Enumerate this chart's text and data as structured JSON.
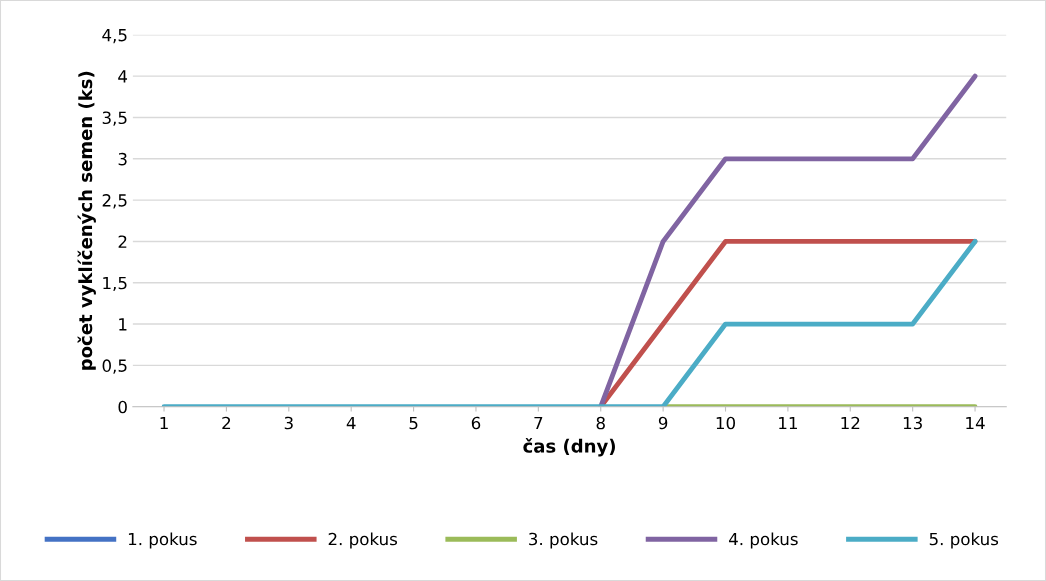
{
  "chart_data": {
    "type": "line",
    "xlabel": "čas (dny)",
    "ylabel": "počet vyklíčených semen (ks)",
    "categories": [
      "1",
      "2",
      "3",
      "4",
      "5",
      "6",
      "7",
      "8",
      "9",
      "10",
      "11",
      "12",
      "13",
      "14"
    ],
    "series": [
      {
        "name": "1. pokus",
        "color": "#4472c4",
        "values": [
          null,
          null,
          null,
          null,
          null,
          null,
          null,
          null,
          null,
          null,
          null,
          null,
          null,
          null
        ]
      },
      {
        "name": "2. pokus",
        "color": "#c0504d",
        "values": [
          null,
          null,
          null,
          null,
          null,
          null,
          null,
          0,
          1,
          2,
          2,
          2,
          2,
          2
        ]
      },
      {
        "name": "3. pokus",
        "color": "#9bbb59",
        "values": [
          null,
          null,
          null,
          null,
          null,
          null,
          null,
          null,
          0,
          0,
          0,
          0,
          0,
          0
        ]
      },
      {
        "name": "4. pokus",
        "color": "#8064a2",
        "values": [
          null,
          null,
          null,
          null,
          null,
          null,
          null,
          0,
          2,
          3,
          3,
          3,
          3,
          4
        ]
      },
      {
        "name": "5. pokus",
        "color": "#4bacc6",
        "values": [
          0,
          0,
          0,
          0,
          0,
          0,
          0,
          0,
          0,
          1,
          1,
          1,
          1,
          2
        ]
      }
    ],
    "ylim": [
      0,
      4.5
    ],
    "yticks": [
      0,
      {
        "value": 0.5,
        "label": "0,5"
      },
      1,
      {
        "value": 1.5,
        "label": "1,5"
      },
      2,
      {
        "value": 2.5,
        "label": "2,5"
      },
      3,
      {
        "value": 3.5,
        "label": "3,5"
      },
      4,
      {
        "value": 4.5,
        "label": "4,5"
      }
    ],
    "grid": "y",
    "legend": "bottom",
    "marker": "none",
    "line_style": "solid"
  }
}
